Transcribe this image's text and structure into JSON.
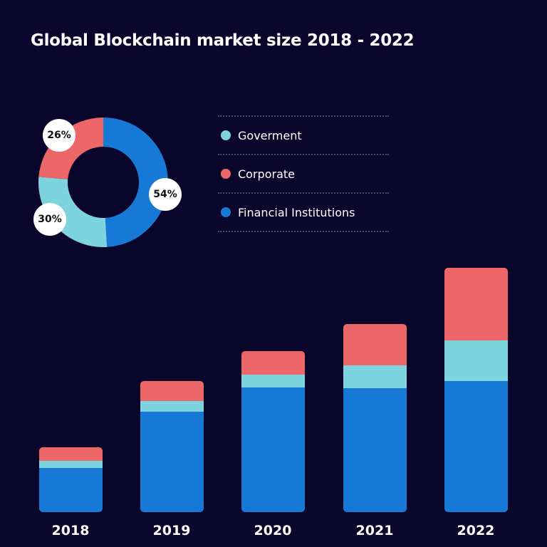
{
  "title": "Global Blockchain market size 2018 - 2022",
  "chart_data": [
    {
      "type": "pie",
      "variant": "donut",
      "slices": [
        {
          "name": "Financial Institutions",
          "value": 54,
          "label": "54%",
          "color": "#1679d6"
        },
        {
          "name": "Goverment",
          "value": 30,
          "label": "30%",
          "color": "#7dd3de"
        },
        {
          "name": "Corporate",
          "value": 26,
          "label": "26%",
          "color": "#ee6768"
        }
      ],
      "legend": "right"
    },
    {
      "type": "bar",
      "stacked": true,
      "categories": [
        "2018",
        "2019",
        "2020",
        "2021",
        "2022"
      ],
      "series": [
        {
          "name": "Financial Institutions",
          "values": [
            62,
            141,
            175,
            174,
            184
          ],
          "color": "#1679d6"
        },
        {
          "name": "Goverment",
          "values": [
            10,
            15,
            18,
            32,
            57
          ],
          "color": "#7dd3de"
        },
        {
          "name": "Corporate",
          "values": [
            19,
            28,
            33,
            58,
            102
          ],
          "color": "#ee6768"
        }
      ],
      "grid": false
    }
  ],
  "legend": [
    {
      "label": "Goverment",
      "color": "#7dd3de"
    },
    {
      "label": "Corporate",
      "color": "#ee6768"
    },
    {
      "label": "Financial Institutions",
      "color": "#1679d6"
    }
  ]
}
